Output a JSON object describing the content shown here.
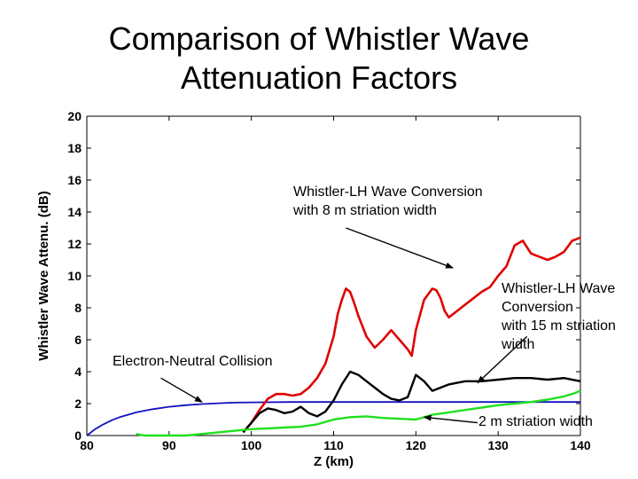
{
  "title_lines": [
    "Comparison of Whistler Wave",
    "Attenuation Factors"
  ],
  "chart_data": {
    "type": "line",
    "xlabel": "Z (km)",
    "ylabel": "Whistler Wave Attenu. (dB)",
    "xlim": [
      80,
      140
    ],
    "ylim": [
      0,
      20
    ],
    "xticks": [
      80,
      90,
      100,
      110,
      120,
      130,
      140
    ],
    "yticks": [
      0,
      2,
      4,
      6,
      8,
      10,
      12,
      14,
      16,
      18,
      20
    ],
    "grid": false,
    "series": [
      {
        "color": "#1010c0",
        "x": [
          80,
          81,
          82,
          83,
          84,
          85,
          86,
          88,
          90,
          92,
          94,
          96,
          98,
          100,
          105,
          110,
          120,
          130,
          140
        ],
        "y": [
          0,
          0.4,
          0.7,
          0.95,
          1.15,
          1.3,
          1.45,
          1.65,
          1.8,
          1.9,
          1.97,
          2.02,
          2.06,
          2.08,
          2.1,
          2.1,
          2.1,
          2.1,
          2.1
        ]
      },
      {
        "color": "#e00000",
        "x": [
          99,
          100,
          101,
          102,
          103,
          104,
          105,
          106,
          107,
          108,
          109,
          110,
          110.5,
          111,
          111.5,
          112,
          112.5,
          113,
          114,
          115,
          116,
          117,
          118,
          119,
          119.5,
          120,
          121,
          122,
          122.5,
          123,
          123.5,
          124,
          125,
          126,
          127,
          128,
          129,
          130,
          131,
          132,
          133,
          134,
          135,
          136,
          137,
          138,
          139,
          140
        ],
        "y": [
          0.2,
          0.8,
          1.6,
          2.3,
          2.6,
          2.6,
          2.5,
          2.6,
          3.0,
          3.6,
          4.5,
          6.2,
          7.6,
          8.5,
          9.2,
          9.0,
          8.3,
          7.5,
          6.2,
          5.5,
          6.0,
          6.6,
          6.0,
          5.4,
          5.0,
          6.6,
          8.5,
          9.2,
          9.1,
          8.6,
          7.8,
          7.4,
          7.8,
          8.2,
          8.6,
          9.0,
          9.3,
          10.0,
          10.6,
          11.9,
          12.2,
          11.4,
          11.2,
          11.0,
          11.2,
          11.5,
          12.2,
          12.4
        ]
      },
      {
        "color": "#000000",
        "x": [
          99,
          100,
          101,
          102,
          103,
          104,
          105,
          106,
          107,
          108,
          109,
          110,
          111,
          112,
          113,
          114,
          115,
          116,
          117,
          118,
          119,
          120,
          121,
          122,
          123,
          124,
          125,
          126,
          127,
          128,
          130,
          132,
          134,
          136,
          138,
          140
        ],
        "y": [
          0.2,
          0.8,
          1.4,
          1.7,
          1.6,
          1.4,
          1.5,
          1.8,
          1.4,
          1.2,
          1.5,
          2.2,
          3.2,
          4.0,
          3.8,
          3.4,
          3.0,
          2.6,
          2.3,
          2.2,
          2.4,
          3.8,
          3.4,
          2.8,
          3.0,
          3.2,
          3.3,
          3.4,
          3.4,
          3.4,
          3.5,
          3.6,
          3.6,
          3.5,
          3.6,
          3.4
        ]
      },
      {
        "color": "#20e020",
        "x": [
          86,
          87,
          88,
          92,
          94,
          96,
          98,
          100,
          102,
          104,
          106,
          108,
          110,
          112,
          114,
          116,
          118,
          120,
          122,
          124,
          126,
          128,
          130,
          132,
          134,
          136,
          138,
          139,
          140
        ],
        "y": [
          0.1,
          0,
          0,
          0,
          0.1,
          0.2,
          0.3,
          0.4,
          0.45,
          0.5,
          0.55,
          0.7,
          1.0,
          1.15,
          1.2,
          1.1,
          1.05,
          1.0,
          1.3,
          1.45,
          1.6,
          1.75,
          1.9,
          2.0,
          2.1,
          2.25,
          2.45,
          2.6,
          2.8
        ]
      }
    ],
    "annotations": [
      {
        "lines": [
          "Whistler-LH Wave Conversion",
          "with 8 m striation width"
        ],
        "arrow_from": [
          111.5,
          13.0
        ],
        "arrow_to": [
          124.5,
          10.5
        ]
      },
      {
        "lines": [
          "Whistler-LH Wave",
          "Conversion",
          "with 15 m striation",
          "width"
        ],
        "arrow_from": [
          133.5,
          6.2
        ],
        "arrow_to": [
          127.5,
          3.3
        ]
      },
      {
        "lines": [
          "Electron-Neutral Collision"
        ],
        "arrow_from": [
          89,
          3.6
        ],
        "arrow_to": [
          94,
          2.1
        ]
      },
      {
        "lines": [
          "2 m striation width"
        ],
        "arrow_from": [
          127.5,
          0.8
        ],
        "arrow_to": [
          121,
          1.15
        ]
      }
    ]
  }
}
